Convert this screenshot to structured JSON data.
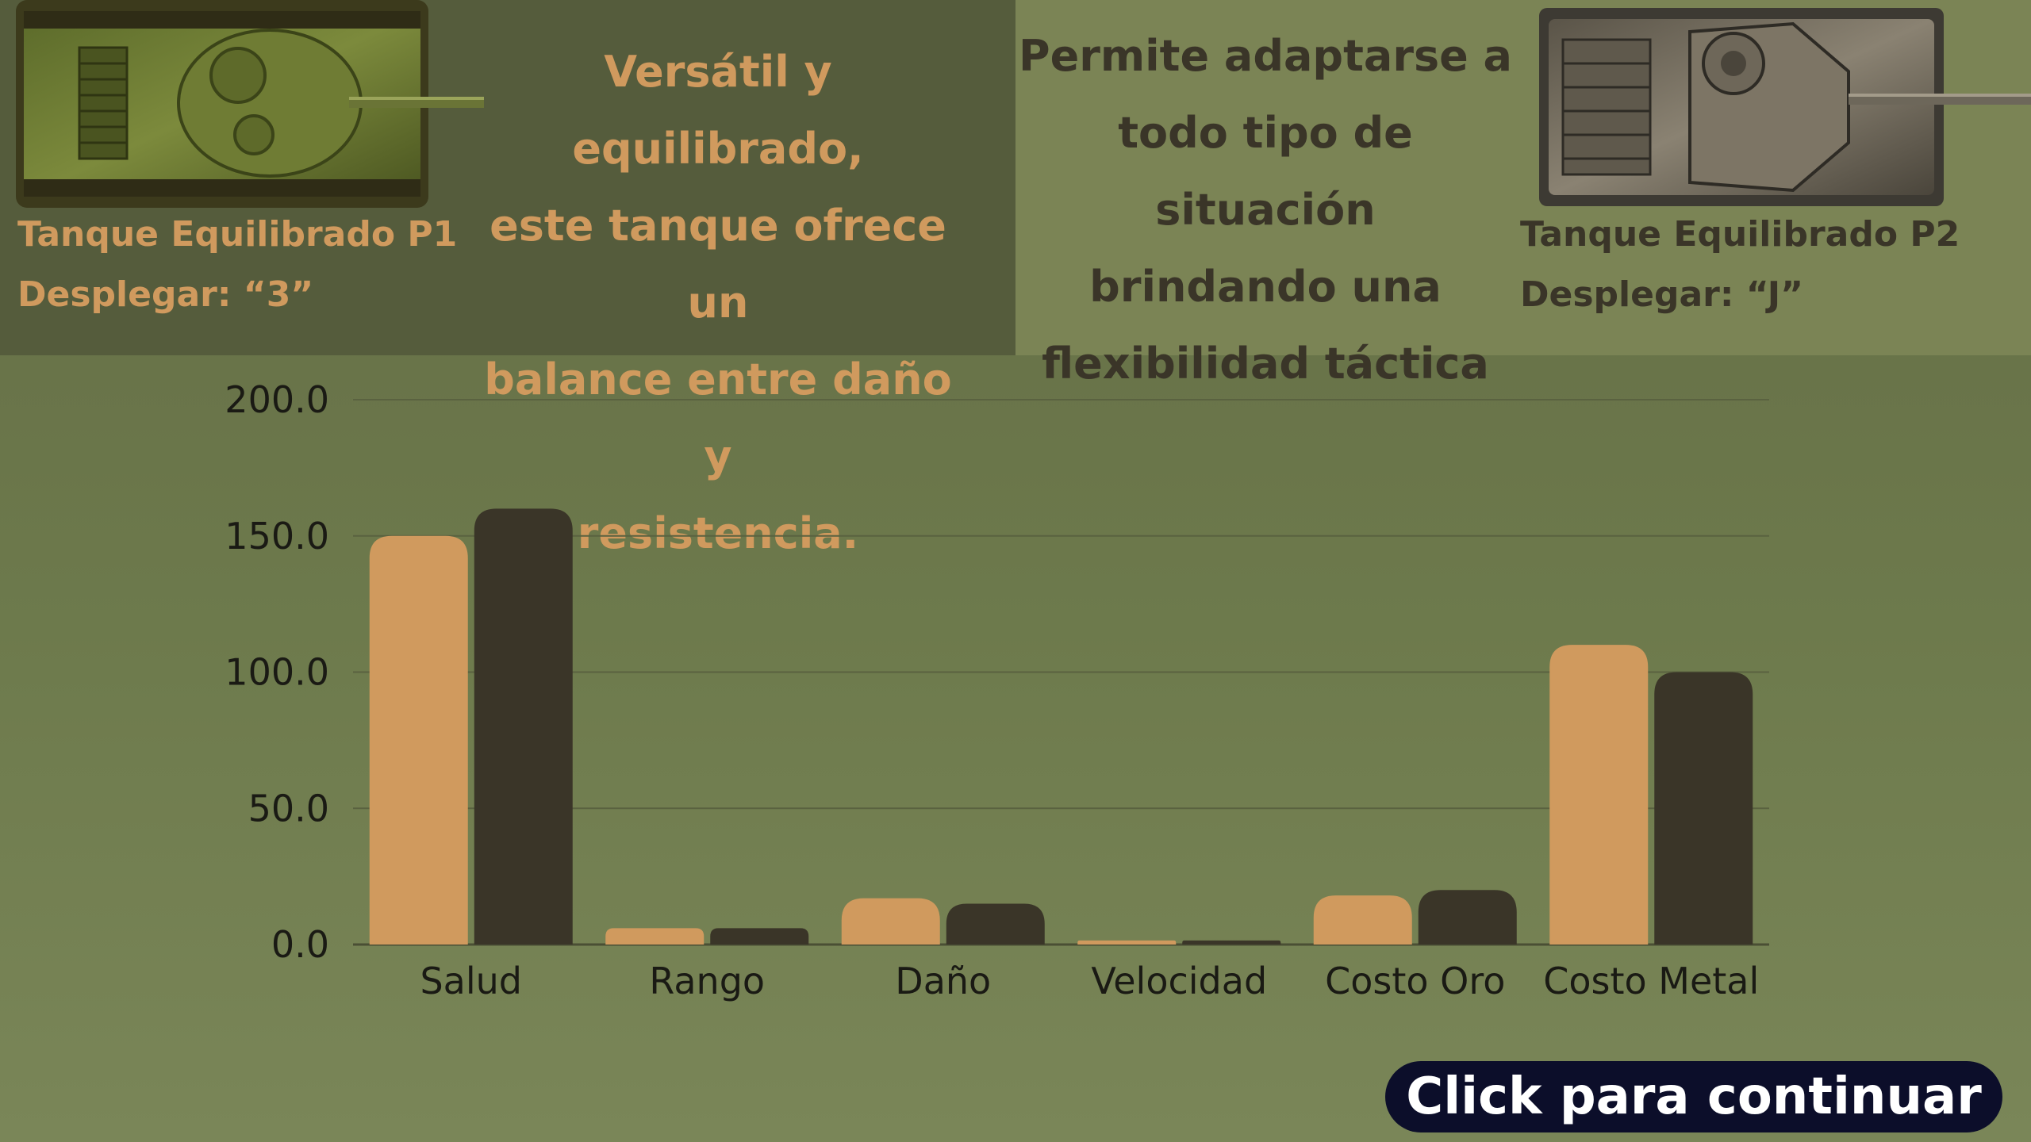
{
  "tank_p1": {
    "name": "Tanque Equilibrado P1",
    "deploy": "Desplegar: “3”",
    "description": [
      "Versátil y equilibrado,",
      "este tanque ofrece un",
      "balance entre daño y",
      "resistencia."
    ]
  },
  "tank_p2": {
    "name": "Tanque Equilibrado P2",
    "deploy": "Desplegar: “J”",
    "description": [
      "Permite adaptarse a",
      "todo tipo de situación",
      "brindando una",
      "flexibilidad táctica"
    ]
  },
  "cta": {
    "label": "Click para continuar"
  },
  "colors": {
    "p1": "#d09a5e",
    "p2": "#3a3528",
    "text_dark": "#3a3528",
    "cta_bg": "#0c0e2a"
  },
  "chart_data": {
    "type": "bar",
    "categories": [
      "Salud",
      "Rango",
      "Daño",
      "Velocidad",
      "Costo Oro",
      "Costo Metal"
    ],
    "series": [
      {
        "values": [
          150,
          6,
          17,
          1.5,
          18,
          110
        ],
        "color": "#d09a5e"
      },
      {
        "values": [
          160,
          6,
          15,
          1.5,
          20,
          100
        ],
        "color": "#3a3528"
      }
    ],
    "ylim": [
      0,
      200
    ],
    "yticks": [
      "0.0",
      "50.0",
      "100.0",
      "150.0",
      "200.0"
    ],
    "grid": true,
    "legend": "none"
  }
}
